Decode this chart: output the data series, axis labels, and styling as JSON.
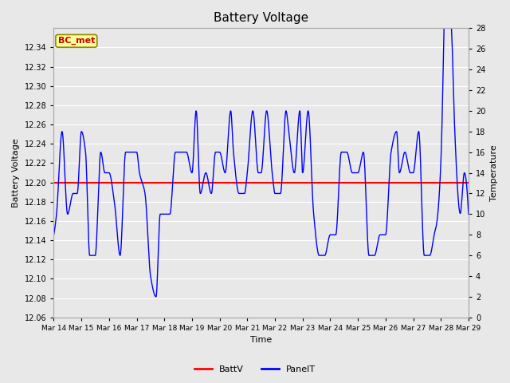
{
  "title": "Battery Voltage",
  "xlabel": "Time",
  "ylabel_left": "Battery Voltage",
  "ylabel_right": "Temperature",
  "legend_label_bc": "BC_met",
  "legend_label_battv": "BattV",
  "legend_label_panelt": "PanelT",
  "ylim_left": [
    12.06,
    12.36
  ],
  "ylim_right": [
    0,
    28
  ],
  "yticks_left": [
    12.06,
    12.08,
    12.1,
    12.12,
    12.14,
    12.16,
    12.18,
    12.2,
    12.22,
    12.24,
    12.26,
    12.28,
    12.3,
    12.32,
    12.34
  ],
  "yticks_right": [
    0,
    2,
    4,
    6,
    8,
    10,
    12,
    14,
    16,
    18,
    20,
    22,
    24,
    26,
    28
  ],
  "xtick_labels": [
    "Mar 14",
    "Mar 15",
    "Mar 16",
    "Mar 17",
    "Mar 18",
    "Mar 19",
    "Mar 20",
    "Mar 21",
    "Mar 22",
    "Mar 23",
    "Mar 24",
    "Mar 25",
    "Mar 26",
    "Mar 27",
    "Mar 28",
    "Mar 29"
  ],
  "battv_value": 12.2,
  "background_color": "#e8e8e8",
  "plot_bg_color": "#e8e8e8",
  "grid_color": "#ffffff",
  "line_color_battv": "#ff0000",
  "line_color_panelt": "#0000ff",
  "bc_met_box_color": "#ffff99",
  "bc_met_border_color": "#8b8b00",
  "bc_met_text_color": "#cc0000",
  "figwidth": 6.4,
  "figheight": 4.8,
  "dpi": 100
}
